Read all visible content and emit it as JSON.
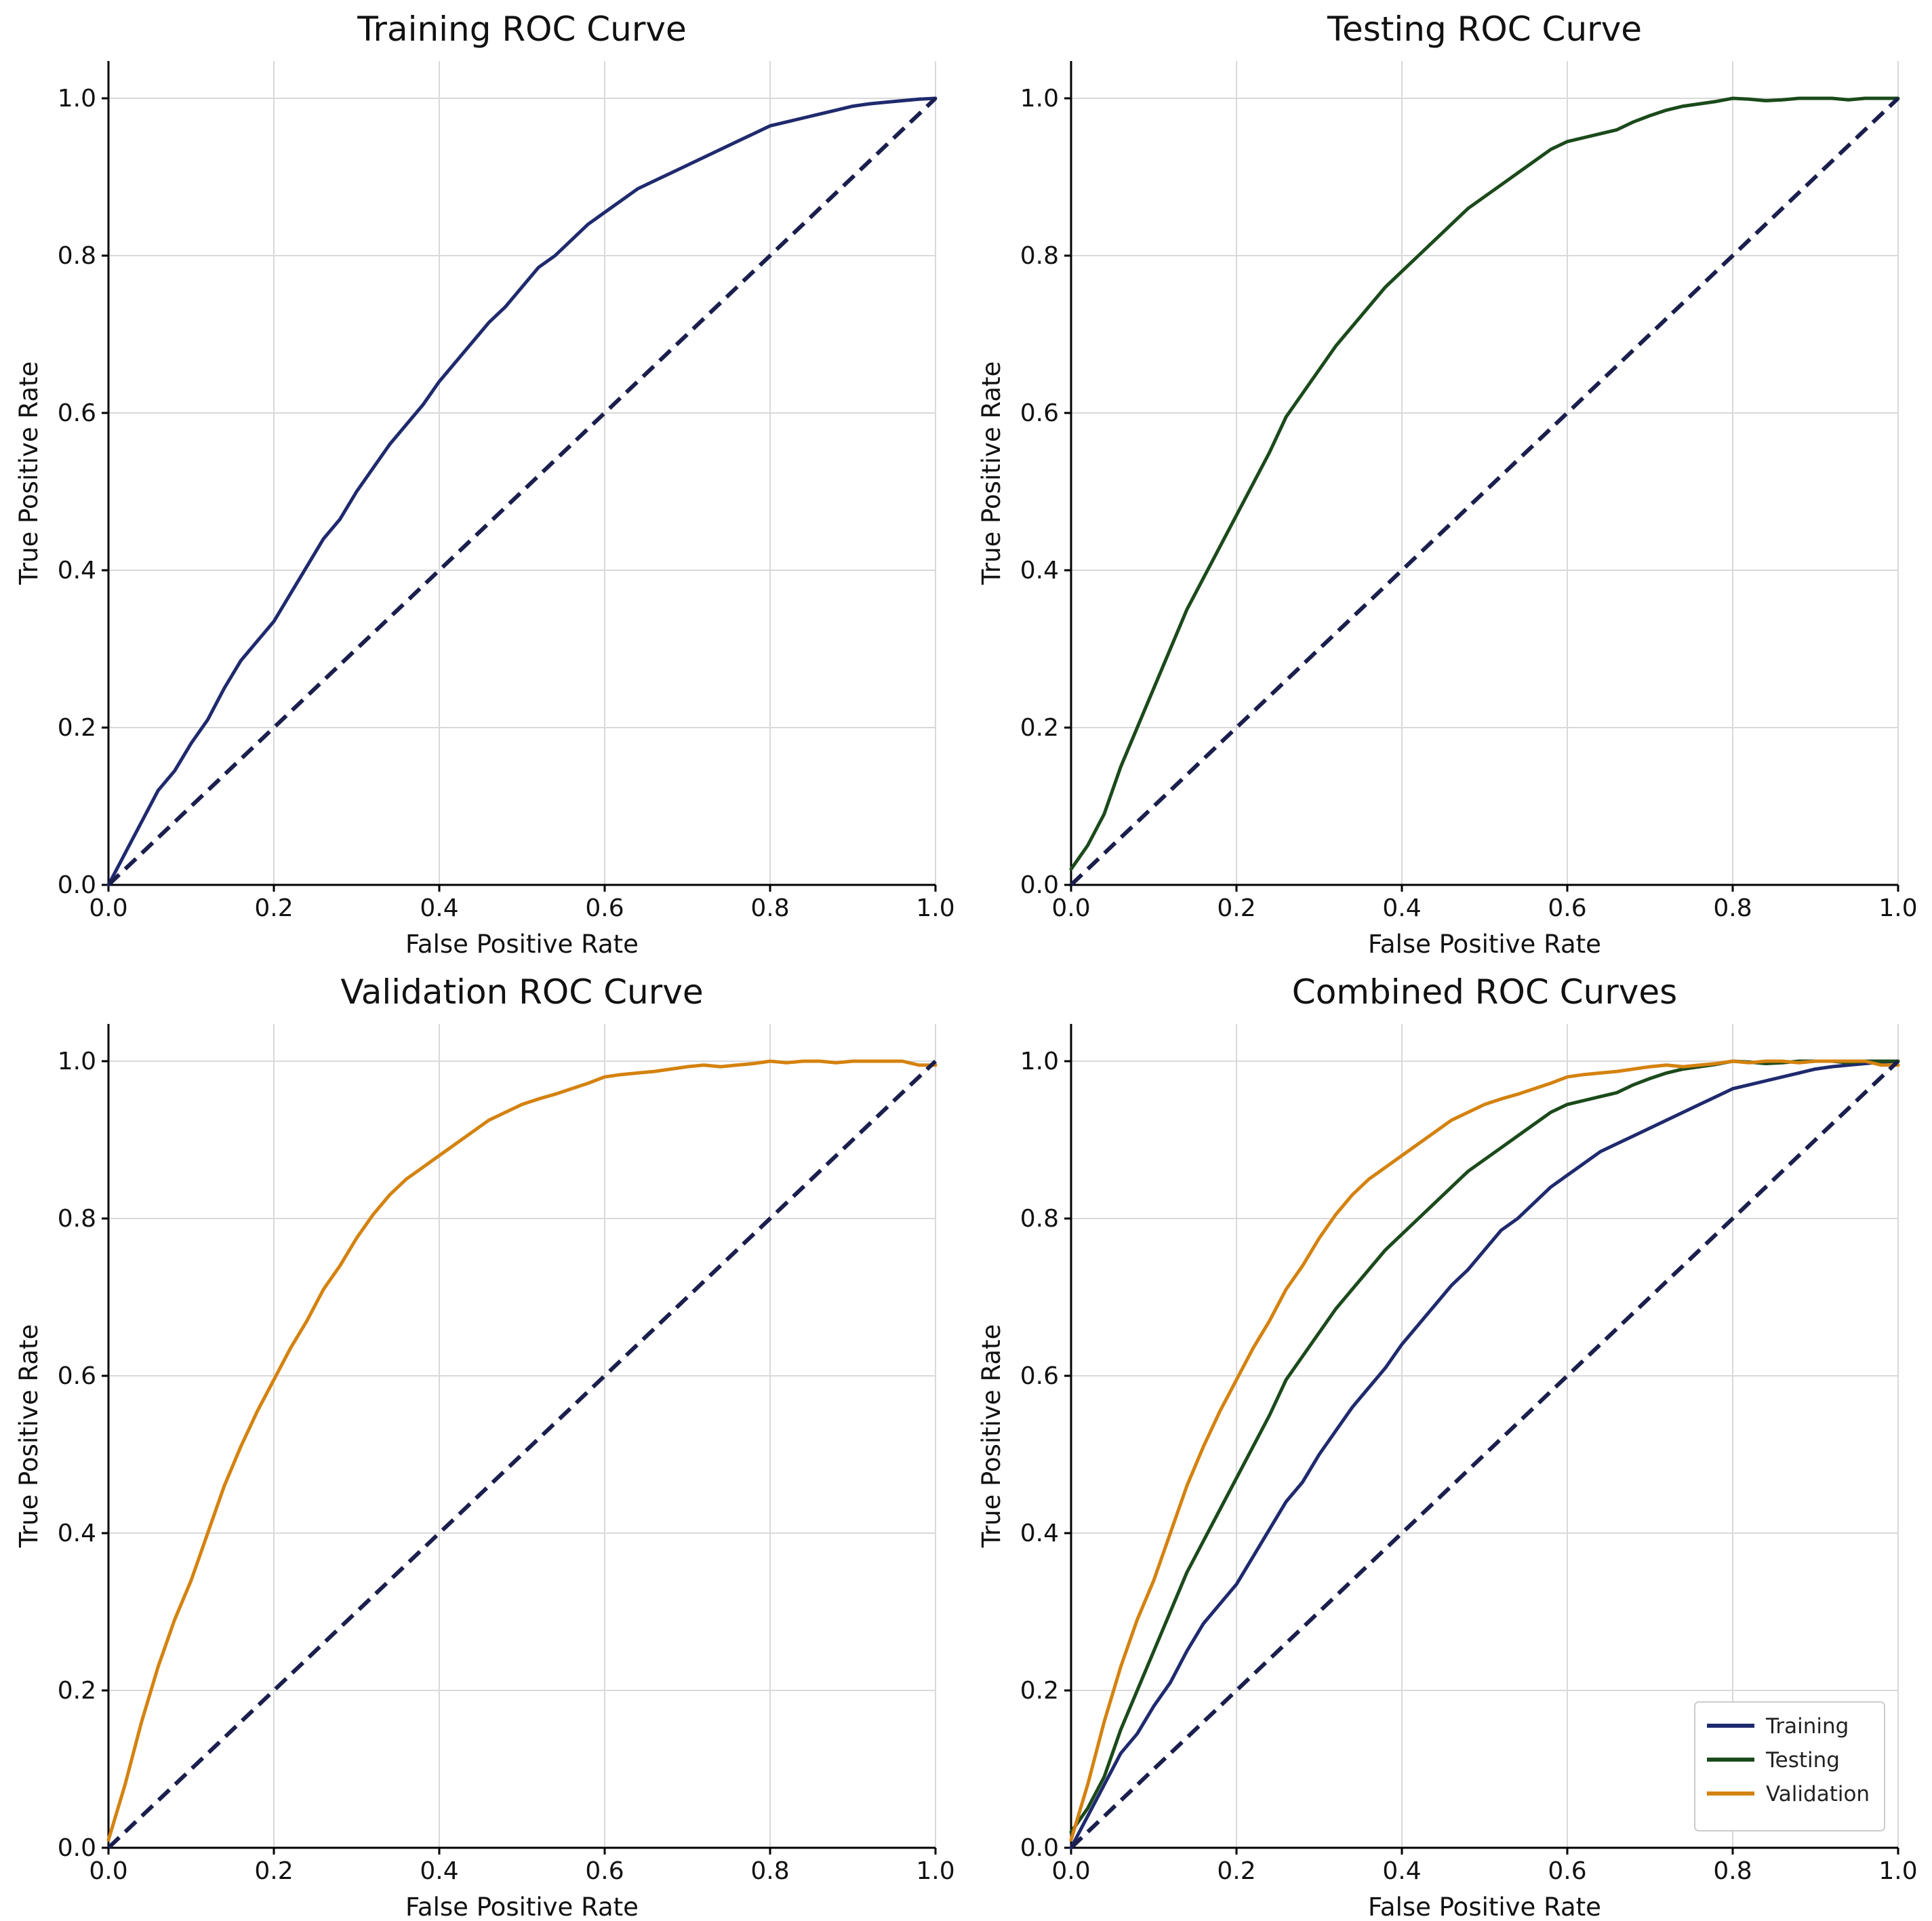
{
  "colors": {
    "training": "#1f2a6e",
    "testing": "#1b4a1b",
    "validation": "#d4820f",
    "diagonal": "#1a1f4d",
    "grid": "#d9d9d9",
    "axis": "#000000"
  },
  "chart_data": [
    {
      "type": "line",
      "title": "Training ROC Curve",
      "xlabel": "False Positive Rate",
      "ylabel": "True Positive Rate",
      "xlim": [
        0,
        1
      ],
      "ylim": [
        0,
        1
      ],
      "xticks": [
        "0.0",
        "0.2",
        "0.4",
        "0.6",
        "0.8",
        "1.0"
      ],
      "yticks": [
        "0.0",
        "0.2",
        "0.4",
        "0.6",
        "0.8",
        "1.0"
      ],
      "grid": true,
      "legend": null,
      "series": [
        {
          "color_key": "training",
          "x": [
            0,
            0.02,
            0.04,
            0.06,
            0.08,
            0.1,
            0.12,
            0.14,
            0.16,
            0.18,
            0.2,
            0.22,
            0.24,
            0.26,
            0.28,
            0.3,
            0.32,
            0.34,
            0.36,
            0.38,
            0.4,
            0.42,
            0.44,
            0.46,
            0.48,
            0.5,
            0.52,
            0.54,
            0.56,
            0.58,
            0.6,
            0.62,
            0.64,
            0.66,
            0.68,
            0.7,
            0.72,
            0.74,
            0.76,
            0.78,
            0.8,
            0.82,
            0.84,
            0.86,
            0.88,
            0.9,
            0.92,
            0.94,
            0.96,
            0.98,
            1.0
          ],
          "y": [
            0,
            0.04,
            0.08,
            0.12,
            0.145,
            0.18,
            0.21,
            0.25,
            0.285,
            0.31,
            0.335,
            0.37,
            0.405,
            0.44,
            0.465,
            0.5,
            0.53,
            0.56,
            0.585,
            0.61,
            0.64,
            0.665,
            0.69,
            0.715,
            0.735,
            0.76,
            0.785,
            0.8,
            0.82,
            0.84,
            0.855,
            0.87,
            0.885,
            0.895,
            0.905,
            0.915,
            0.925,
            0.935,
            0.945,
            0.955,
            0.965,
            0.97,
            0.975,
            0.98,
            0.985,
            0.99,
            0.993,
            0.995,
            0.997,
            0.999,
            1.0
          ]
        },
        {
          "dashed": true,
          "color_key": "diagonal",
          "x": [
            0,
            1
          ],
          "y": [
            0,
            1
          ]
        }
      ]
    },
    {
      "type": "line",
      "title": "Testing ROC Curve",
      "xlabel": "False Positive Rate",
      "ylabel": "True Positive Rate",
      "xlim": [
        0,
        1
      ],
      "ylim": [
        0,
        1
      ],
      "xticks": [
        "0.0",
        "0.2",
        "0.4",
        "0.6",
        "0.8",
        "1.0"
      ],
      "yticks": [
        "0.0",
        "0.2",
        "0.4",
        "0.6",
        "0.8",
        "1.0"
      ],
      "grid": true,
      "legend": null,
      "series": [
        {
          "color_key": "testing",
          "x": [
            0,
            0.02,
            0.04,
            0.06,
            0.08,
            0.1,
            0.12,
            0.14,
            0.16,
            0.18,
            0.2,
            0.22,
            0.24,
            0.26,
            0.28,
            0.3,
            0.32,
            0.34,
            0.36,
            0.38,
            0.4,
            0.42,
            0.44,
            0.46,
            0.48,
            0.5,
            0.52,
            0.54,
            0.56,
            0.58,
            0.6,
            0.62,
            0.64,
            0.66,
            0.68,
            0.7,
            0.72,
            0.74,
            0.76,
            0.78,
            0.8,
            0.82,
            0.84,
            0.86,
            0.88,
            0.9,
            0.92,
            0.94,
            0.96,
            0.98,
            1.0
          ],
          "y": [
            0.02,
            0.05,
            0.09,
            0.15,
            0.2,
            0.25,
            0.3,
            0.35,
            0.39,
            0.43,
            0.47,
            0.51,
            0.55,
            0.595,
            0.625,
            0.655,
            0.685,
            0.71,
            0.735,
            0.76,
            0.78,
            0.8,
            0.82,
            0.84,
            0.86,
            0.875,
            0.89,
            0.905,
            0.92,
            0.935,
            0.945,
            0.95,
            0.955,
            0.96,
            0.97,
            0.978,
            0.985,
            0.99,
            0.993,
            0.996,
            1.0,
            0.999,
            0.997,
            0.998,
            1.0,
            1.0,
            1.0,
            0.998,
            1.0,
            1.0,
            1.0
          ]
        },
        {
          "dashed": true,
          "color_key": "diagonal",
          "x": [
            0,
            1
          ],
          "y": [
            0,
            1
          ]
        }
      ]
    },
    {
      "type": "line",
      "title": "Validation ROC Curve",
      "xlabel": "False Positive Rate",
      "ylabel": "True Positive Rate",
      "xlim": [
        0,
        1
      ],
      "ylim": [
        0,
        1
      ],
      "xticks": [
        "0.0",
        "0.2",
        "0.4",
        "0.6",
        "0.8",
        "1.0"
      ],
      "yticks": [
        "0.0",
        "0.2",
        "0.4",
        "0.6",
        "0.8",
        "1.0"
      ],
      "grid": true,
      "legend": null,
      "series": [
        {
          "color_key": "validation",
          "x": [
            0,
            0.02,
            0.04,
            0.06,
            0.08,
            0.1,
            0.12,
            0.14,
            0.16,
            0.18,
            0.2,
            0.22,
            0.24,
            0.26,
            0.28,
            0.3,
            0.32,
            0.34,
            0.36,
            0.38,
            0.4,
            0.42,
            0.44,
            0.46,
            0.48,
            0.5,
            0.52,
            0.54,
            0.56,
            0.58,
            0.6,
            0.62,
            0.64,
            0.66,
            0.68,
            0.7,
            0.72,
            0.74,
            0.76,
            0.78,
            0.8,
            0.82,
            0.84,
            0.86,
            0.88,
            0.9,
            0.92,
            0.94,
            0.96,
            0.98,
            1.0
          ],
          "y": [
            0.01,
            0.08,
            0.16,
            0.23,
            0.29,
            0.34,
            0.4,
            0.46,
            0.51,
            0.555,
            0.595,
            0.635,
            0.67,
            0.71,
            0.74,
            0.775,
            0.805,
            0.83,
            0.85,
            0.865,
            0.88,
            0.895,
            0.91,
            0.925,
            0.935,
            0.945,
            0.952,
            0.958,
            0.965,
            0.972,
            0.98,
            0.983,
            0.985,
            0.987,
            0.99,
            0.993,
            0.995,
            0.993,
            0.995,
            0.997,
            1.0,
            0.998,
            1.0,
            1.0,
            0.998,
            1.0,
            1.0,
            1.0,
            1.0,
            0.995,
            0.995
          ]
        },
        {
          "dashed": true,
          "color_key": "diagonal",
          "x": [
            0,
            1
          ],
          "y": [
            0,
            1
          ]
        }
      ]
    },
    {
      "type": "line",
      "title": "Combined ROC Curves",
      "xlabel": "False Positive Rate",
      "ylabel": "True Positive Rate",
      "xlim": [
        0,
        1
      ],
      "ylim": [
        0,
        1
      ],
      "xticks": [
        "0.0",
        "0.2",
        "0.4",
        "0.6",
        "0.8",
        "1.0"
      ],
      "yticks": [
        "0.0",
        "0.2",
        "0.4",
        "0.6",
        "0.8",
        "1.0"
      ],
      "grid": true,
      "legend": "lower-right",
      "series": [
        {
          "name": "Training",
          "color_key": "training",
          "x": [
            0,
            0.02,
            0.04,
            0.06,
            0.08,
            0.1,
            0.12,
            0.14,
            0.16,
            0.18,
            0.2,
            0.22,
            0.24,
            0.26,
            0.28,
            0.3,
            0.32,
            0.34,
            0.36,
            0.38,
            0.4,
            0.42,
            0.44,
            0.46,
            0.48,
            0.5,
            0.52,
            0.54,
            0.56,
            0.58,
            0.6,
            0.62,
            0.64,
            0.66,
            0.68,
            0.7,
            0.72,
            0.74,
            0.76,
            0.78,
            0.8,
            0.82,
            0.84,
            0.86,
            0.88,
            0.9,
            0.92,
            0.94,
            0.96,
            0.98,
            1.0
          ],
          "y": [
            0,
            0.04,
            0.08,
            0.12,
            0.145,
            0.18,
            0.21,
            0.25,
            0.285,
            0.31,
            0.335,
            0.37,
            0.405,
            0.44,
            0.465,
            0.5,
            0.53,
            0.56,
            0.585,
            0.61,
            0.64,
            0.665,
            0.69,
            0.715,
            0.735,
            0.76,
            0.785,
            0.8,
            0.82,
            0.84,
            0.855,
            0.87,
            0.885,
            0.895,
            0.905,
            0.915,
            0.925,
            0.935,
            0.945,
            0.955,
            0.965,
            0.97,
            0.975,
            0.98,
            0.985,
            0.99,
            0.993,
            0.995,
            0.997,
            0.999,
            1.0
          ]
        },
        {
          "name": "Testing",
          "color_key": "testing",
          "x": [
            0,
            0.02,
            0.04,
            0.06,
            0.08,
            0.1,
            0.12,
            0.14,
            0.16,
            0.18,
            0.2,
            0.22,
            0.24,
            0.26,
            0.28,
            0.3,
            0.32,
            0.34,
            0.36,
            0.38,
            0.4,
            0.42,
            0.44,
            0.46,
            0.48,
            0.5,
            0.52,
            0.54,
            0.56,
            0.58,
            0.6,
            0.62,
            0.64,
            0.66,
            0.68,
            0.7,
            0.72,
            0.74,
            0.76,
            0.78,
            0.8,
            0.82,
            0.84,
            0.86,
            0.88,
            0.9,
            0.92,
            0.94,
            0.96,
            0.98,
            1.0
          ],
          "y": [
            0.02,
            0.05,
            0.09,
            0.15,
            0.2,
            0.25,
            0.3,
            0.35,
            0.39,
            0.43,
            0.47,
            0.51,
            0.55,
            0.595,
            0.625,
            0.655,
            0.685,
            0.71,
            0.735,
            0.76,
            0.78,
            0.8,
            0.82,
            0.84,
            0.86,
            0.875,
            0.89,
            0.905,
            0.92,
            0.935,
            0.945,
            0.95,
            0.955,
            0.96,
            0.97,
            0.978,
            0.985,
            0.99,
            0.993,
            0.996,
            1.0,
            0.999,
            0.997,
            0.998,
            1.0,
            1.0,
            1.0,
            0.998,
            1.0,
            1.0,
            1.0
          ]
        },
        {
          "name": "Validation",
          "color_key": "validation",
          "x": [
            0,
            0.02,
            0.04,
            0.06,
            0.08,
            0.1,
            0.12,
            0.14,
            0.16,
            0.18,
            0.2,
            0.22,
            0.24,
            0.26,
            0.28,
            0.3,
            0.32,
            0.34,
            0.36,
            0.38,
            0.4,
            0.42,
            0.44,
            0.46,
            0.48,
            0.5,
            0.52,
            0.54,
            0.56,
            0.58,
            0.6,
            0.62,
            0.64,
            0.66,
            0.68,
            0.7,
            0.72,
            0.74,
            0.76,
            0.78,
            0.8,
            0.82,
            0.84,
            0.86,
            0.88,
            0.9,
            0.92,
            0.94,
            0.96,
            0.98,
            1.0
          ],
          "y": [
            0.01,
            0.08,
            0.16,
            0.23,
            0.29,
            0.34,
            0.4,
            0.46,
            0.51,
            0.555,
            0.595,
            0.635,
            0.67,
            0.71,
            0.74,
            0.775,
            0.805,
            0.83,
            0.85,
            0.865,
            0.88,
            0.895,
            0.91,
            0.925,
            0.935,
            0.945,
            0.952,
            0.958,
            0.965,
            0.972,
            0.98,
            0.983,
            0.985,
            0.987,
            0.99,
            0.993,
            0.995,
            0.993,
            0.995,
            0.997,
            1.0,
            0.998,
            1.0,
            1.0,
            0.998,
            1.0,
            1.0,
            1.0,
            1.0,
            0.995,
            0.995
          ]
        },
        {
          "dashed": true,
          "color_key": "diagonal",
          "x": [
            0,
            1
          ],
          "y": [
            0,
            1
          ]
        }
      ]
    }
  ]
}
